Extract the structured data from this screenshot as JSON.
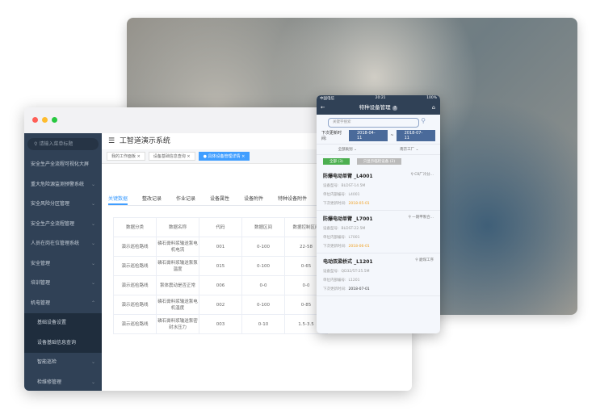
{
  "desktop": {
    "app_title": "工智道演示系统",
    "search_placeholder": "请输入菜单标题",
    "menu": [
      {
        "label": "安全生产全流程可视化大屏",
        "chev": ""
      },
      {
        "label": "重大危险源监测预警系统",
        "chev": "⌄"
      },
      {
        "label": "安全风险分区管理",
        "chev": "⌄"
      },
      {
        "label": "安全生产全流程管理",
        "chev": "⌄"
      },
      {
        "label": "人员在岗在位管理系统",
        "chev": "⌄"
      },
      {
        "label": "安全管理",
        "chev": "⌄"
      },
      {
        "label": "培训管理",
        "chev": "⌄"
      },
      {
        "label": "机电管理",
        "chev": "⌃"
      }
    ],
    "submenu": [
      "基础设备设置",
      "设备基础信息查询"
    ],
    "menu_after": [
      {
        "label": "智能巡检",
        "chev": "⌄"
      },
      {
        "label": "检维修管理",
        "chev": "⌄"
      }
    ],
    "tags": [
      "我的工作面板 ×",
      "设备基础信息查询 ×",
      "● 具体设备管理详情 ×"
    ],
    "content_tabs": [
      "关键数据",
      "整改记录",
      "作业记录",
      "设备属性",
      "设备附件",
      "特种设备附件"
    ],
    "table": {
      "headers": [
        "数据分类",
        "数据名称",
        "代码",
        "数据区间",
        "数据控制区间"
      ],
      "rows": [
        [
          "演示巡检路线",
          "磷石膏料浆输送泵电机电流",
          "001",
          "0-100",
          "22-58"
        ],
        [
          "演示巡检路线",
          "磷石膏料浆输送泵泵温度",
          "015",
          "0-100",
          "0-65"
        ],
        [
          "演示巡检路线",
          "泵体震动是否正常",
          "006",
          "0-0",
          "0-0"
        ],
        [
          "演示巡检路线",
          "磷石膏料浆输送泵电机温度",
          "002",
          "0-100",
          "0-85"
        ],
        [
          "演示巡检路线",
          "磷石膏料浆输送泵密封水压力",
          "003",
          "0-10",
          "1.5-3.5"
        ]
      ]
    }
  },
  "phone": {
    "status": {
      "carrier": "中国电信",
      "time": "20:21",
      "battery": "100%"
    },
    "title": "特种设备管理",
    "help": "?",
    "search_placeholder": "关键字搜索",
    "date_label": "下次更新时间:",
    "date_from": "2018-04-11",
    "date_sep": "~",
    "date_to": "2018-07-11",
    "filter_type": "全部类别",
    "filter_factory": "南京工厂",
    "chip_all": "全部 (3)",
    "chip_special": "只显示临检设备 (2)",
    "colors": {
      "green": "#4caf50",
      "orange": "#f0a020",
      "navy": "#304156"
    },
    "cards": [
      {
        "name": "防爆电动单臂 _L4001",
        "location": "C0厂冷分...",
        "model_label": "设备型号:",
        "model": "BLDST-14.5M",
        "code_label": "单位内部编号:",
        "code": "L4001",
        "next_label": "下次更新时间:",
        "next": "2018-05-01",
        "overdue": true
      },
      {
        "name": "防爆电动单臂 _L7001",
        "location": "一期甲製合...",
        "model_label": "设备型号:",
        "model": "BLDST-22.5M",
        "code_label": "单位内部编号:",
        "code": "L7001",
        "next_label": "下次更新时间:",
        "next": "2018-06-01",
        "overdue": true
      },
      {
        "name": "电动双梁桥式 _L1201",
        "location": "磨煤工序",
        "model_label": "设备型号:",
        "model": "QD32/5T-25.5M",
        "code_label": "单位内部编号:",
        "code": "L1201",
        "next_label": "下次更新时间:",
        "next": "2018-07-01",
        "overdue": false
      }
    ]
  }
}
